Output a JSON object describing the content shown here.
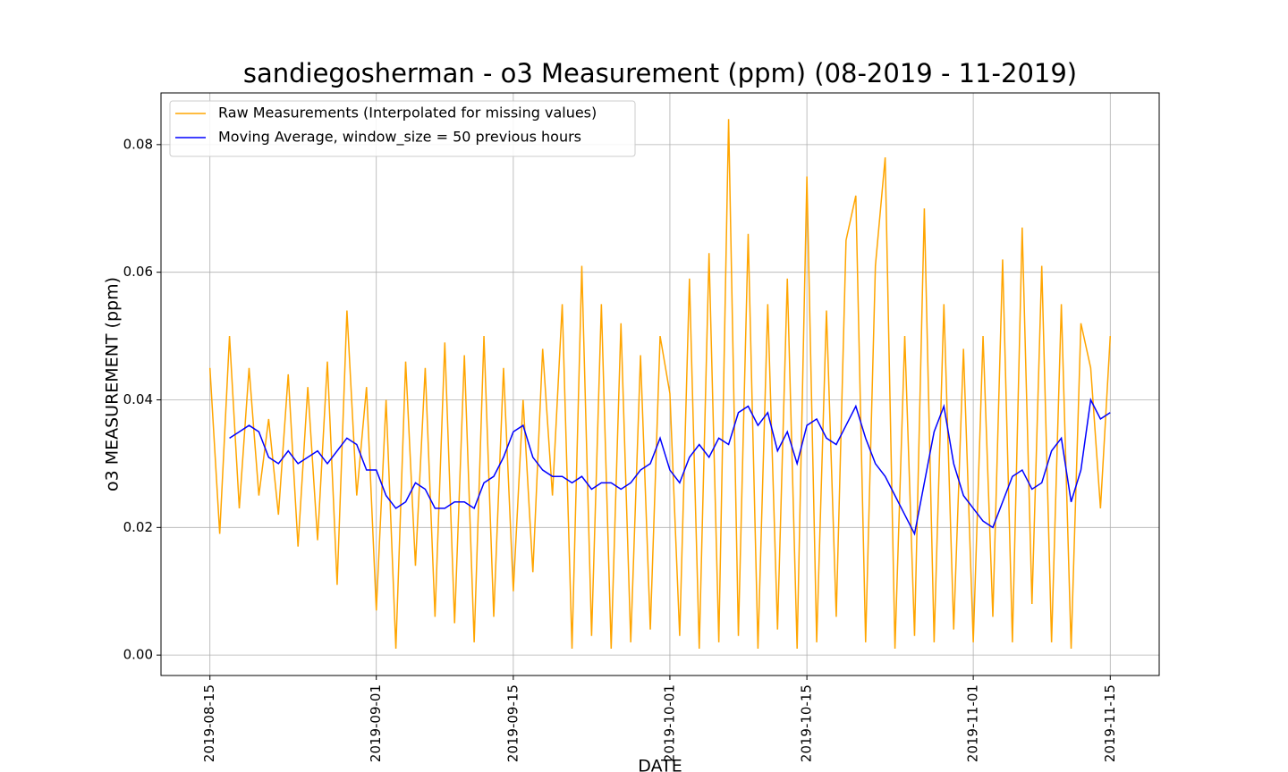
{
  "chart_data": {
    "type": "line",
    "title": "sandiegosherman - o3 Measurement (ppm) (08-2019 - 11-2019)",
    "xlabel": "DATE",
    "ylabel": "o3 MEASUREMENT (ppm)",
    "x": [
      "2019-08-15",
      "2019-08-16",
      "2019-08-17",
      "2019-08-18",
      "2019-08-19",
      "2019-08-20",
      "2019-08-21",
      "2019-08-22",
      "2019-08-23",
      "2019-08-24",
      "2019-08-25",
      "2019-08-26",
      "2019-08-27",
      "2019-08-28",
      "2019-08-29",
      "2019-08-30",
      "2019-08-31",
      "2019-09-01",
      "2019-09-02",
      "2019-09-03",
      "2019-09-04",
      "2019-09-05",
      "2019-09-06",
      "2019-09-07",
      "2019-09-08",
      "2019-09-09",
      "2019-09-10",
      "2019-09-11",
      "2019-09-12",
      "2019-09-13",
      "2019-09-14",
      "2019-09-15",
      "2019-09-16",
      "2019-09-17",
      "2019-09-18",
      "2019-09-19",
      "2019-09-20",
      "2019-09-21",
      "2019-09-22",
      "2019-09-23",
      "2019-09-24",
      "2019-09-25",
      "2019-09-26",
      "2019-09-27",
      "2019-09-28",
      "2019-09-29",
      "2019-09-30",
      "2019-10-01",
      "2019-10-02",
      "2019-10-03",
      "2019-10-04",
      "2019-10-05",
      "2019-10-06",
      "2019-10-07",
      "2019-10-08",
      "2019-10-09",
      "2019-10-10",
      "2019-10-11",
      "2019-10-12",
      "2019-10-13",
      "2019-10-14",
      "2019-10-15",
      "2019-10-16",
      "2019-10-17",
      "2019-10-18",
      "2019-10-19",
      "2019-10-20",
      "2019-10-21",
      "2019-10-22",
      "2019-10-23",
      "2019-10-24",
      "2019-10-25",
      "2019-10-26",
      "2019-10-27",
      "2019-10-28",
      "2019-10-29",
      "2019-10-30",
      "2019-10-31",
      "2019-11-01",
      "2019-11-02",
      "2019-11-03",
      "2019-11-04",
      "2019-11-05",
      "2019-11-06",
      "2019-11-07",
      "2019-11-08",
      "2019-11-09",
      "2019-11-10",
      "2019-11-11",
      "2019-11-12",
      "2019-11-13",
      "2019-11-14",
      "2019-11-15"
    ],
    "series": [
      {
        "name": "Raw Measurements (Interpolated for missing values)",
        "color": "orange",
        "values": [
          0.045,
          0.019,
          0.05,
          0.023,
          0.045,
          0.025,
          0.037,
          0.022,
          0.044,
          0.017,
          0.042,
          0.018,
          0.046,
          0.011,
          0.054,
          0.025,
          0.042,
          0.007,
          0.04,
          0.001,
          0.046,
          0.014,
          0.045,
          0.006,
          0.049,
          0.005,
          0.047,
          0.002,
          0.05,
          0.006,
          0.045,
          0.01,
          0.04,
          0.013,
          0.048,
          0.025,
          0.055,
          0.001,
          0.061,
          0.003,
          0.055,
          0.001,
          0.052,
          0.002,
          0.047,
          0.004,
          0.05,
          0.041,
          0.003,
          0.059,
          0.001,
          0.063,
          0.002,
          0.084,
          0.003,
          0.066,
          0.001,
          0.055,
          0.004,
          0.059,
          0.001,
          0.075,
          0.002,
          0.054,
          0.006,
          0.065,
          0.072,
          0.002,
          0.061,
          0.078,
          0.001,
          0.05,
          0.003,
          0.07,
          0.002,
          0.055,
          0.004,
          0.048,
          0.002,
          0.05,
          0.006,
          0.062,
          0.002,
          0.067,
          0.008,
          0.061,
          0.002,
          0.055,
          0.001,
          0.052,
          0.045,
          0.023,
          0.05
        ]
      },
      {
        "name": "Moving Average, window_size = 50 previous hours",
        "color": "blue",
        "values": [
          null,
          null,
          0.034,
          0.035,
          0.036,
          0.035,
          0.031,
          0.03,
          0.032,
          0.03,
          0.031,
          0.032,
          0.03,
          0.032,
          0.034,
          0.033,
          0.029,
          0.029,
          0.025,
          0.023,
          0.024,
          0.027,
          0.026,
          0.023,
          0.023,
          0.024,
          0.024,
          0.023,
          0.027,
          0.028,
          0.031,
          0.035,
          0.036,
          0.031,
          0.029,
          0.028,
          0.028,
          0.027,
          0.028,
          0.026,
          0.027,
          0.027,
          0.026,
          0.027,
          0.029,
          0.03,
          0.034,
          0.029,
          0.027,
          0.031,
          0.033,
          0.031,
          0.034,
          0.033,
          0.038,
          0.039,
          0.036,
          0.038,
          0.032,
          0.035,
          0.03,
          0.036,
          0.037,
          0.034,
          0.033,
          0.036,
          0.039,
          0.034,
          0.03,
          0.028,
          0.025,
          0.022,
          0.019,
          0.027,
          0.035,
          0.039,
          0.03,
          0.025,
          0.023,
          0.021,
          0.02,
          0.024,
          0.028,
          0.029,
          0.026,
          0.027,
          0.032,
          0.034,
          0.024,
          0.029,
          0.04,
          0.037,
          0.038
        ]
      }
    ],
    "xlim": [
      "2019-08-10",
      "2019-11-20"
    ],
    "xticks": [
      "2019-08-15",
      "2019-09-01",
      "2019-09-15",
      "2019-10-01",
      "2019-10-15",
      "2019-11-01",
      "2019-11-15"
    ],
    "ylim": [
      -0.0032,
      0.0881
    ],
    "yticks": [
      {
        "value": 0,
        "label": "0.00"
      },
      0.02,
      0.04,
      0.06,
      0.08
    ],
    "grid": true,
    "legend": "upper left"
  }
}
